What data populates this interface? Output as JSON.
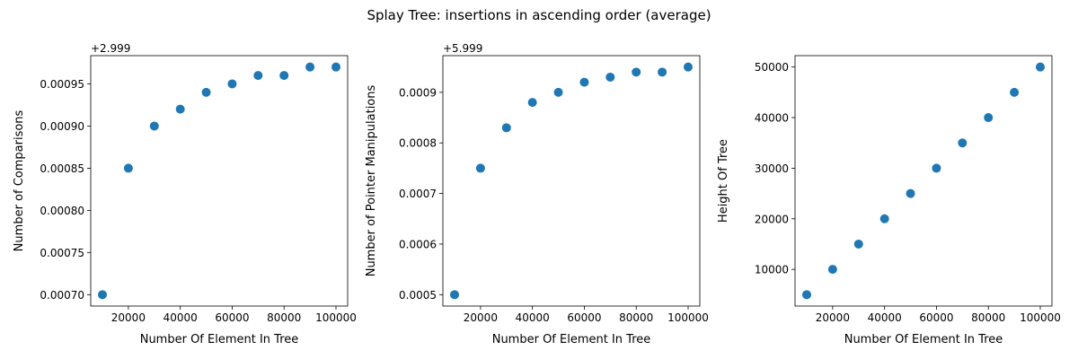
{
  "figure": {
    "title": "Splay Tree: insertions in ascending order (average)"
  },
  "chart_data": [
    {
      "type": "scatter",
      "xlabel": "Number Of Element In Tree",
      "ylabel": "Number of Comparisons",
      "offset_text": "+2.999",
      "x": [
        10000,
        20000,
        30000,
        40000,
        50000,
        60000,
        70000,
        80000,
        90000,
        100000
      ],
      "y": [
        0.0007,
        0.00085,
        0.0009,
        0.00092,
        0.00094,
        0.00095,
        0.00096,
        0.00096,
        0.00097,
        0.00097
      ],
      "xlim": [
        5500,
        104500
      ],
      "ylim": [
        0.0006865,
        0.0009835
      ],
      "xticks": [
        20000,
        40000,
        60000,
        80000,
        100000
      ],
      "xtick_labels": [
        "20000",
        "40000",
        "60000",
        "80000",
        "100000"
      ],
      "yticks": [
        0.0007,
        0.00075,
        0.0008,
        0.00085,
        0.0009,
        0.00095
      ],
      "ytick_labels": [
        "0.00070",
        "0.00075",
        "0.00080",
        "0.00085",
        "0.00090",
        "0.00095"
      ],
      "color": "#1f77b4",
      "grid": false
    },
    {
      "type": "scatter",
      "xlabel": "Number Of Element In Tree",
      "ylabel": "Number of Pointer Manipulations",
      "offset_text": "+5.999",
      "x": [
        10000,
        20000,
        30000,
        40000,
        50000,
        60000,
        70000,
        80000,
        90000,
        100000
      ],
      "y": [
        0.0005,
        0.00075,
        0.00083,
        0.00088,
        0.0009,
        0.00092,
        0.00093,
        0.00094,
        0.00094,
        0.00095
      ],
      "xlim": [
        5500,
        104500
      ],
      "ylim": [
        0.0004775,
        0.0009725
      ],
      "xticks": [
        20000,
        40000,
        60000,
        80000,
        100000
      ],
      "xtick_labels": [
        "20000",
        "40000",
        "60000",
        "80000",
        "100000"
      ],
      "yticks": [
        0.0005,
        0.0006,
        0.0007,
        0.0008,
        0.0009
      ],
      "ytick_labels": [
        "0.0005",
        "0.0006",
        "0.0007",
        "0.0008",
        "0.0009"
      ],
      "color": "#1f77b4",
      "grid": false
    },
    {
      "type": "scatter",
      "xlabel": "Number Of Element In Tree",
      "ylabel": "Height Of Tree",
      "offset_text": "",
      "x": [
        10000,
        20000,
        30000,
        40000,
        50000,
        60000,
        70000,
        80000,
        90000,
        100000
      ],
      "y": [
        5000,
        10000,
        15000,
        20000,
        25000,
        30000,
        35000,
        40000,
        45000,
        50000
      ],
      "xlim": [
        5500,
        104500
      ],
      "ylim": [
        2750,
        52250
      ],
      "xticks": [
        20000,
        40000,
        60000,
        80000,
        100000
      ],
      "xtick_labels": [
        "20000",
        "40000",
        "60000",
        "80000",
        "100000"
      ],
      "yticks": [
        10000,
        20000,
        30000,
        40000,
        50000
      ],
      "ytick_labels": [
        "10000",
        "20000",
        "30000",
        "40000",
        "50000"
      ],
      "color": "#1f77b4",
      "grid": false
    }
  ]
}
